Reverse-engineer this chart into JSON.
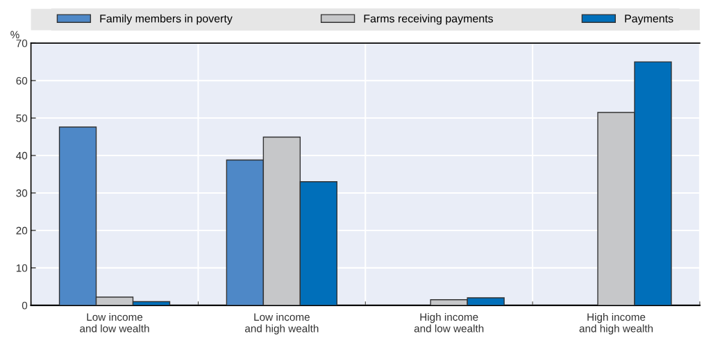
{
  "chart_data": {
    "type": "bar",
    "ylabel": "%",
    "categories": [
      "Low income\nand low wealth",
      "Low income\nand high wealth",
      "High income\nand low wealth",
      "High income\nand high wealth"
    ],
    "series": [
      {
        "name": "Family members in poverty",
        "color": "#4e88c7",
        "values": [
          47.6,
          38.8,
          null,
          null
        ]
      },
      {
        "name": "Farms receiving payments",
        "color": "#c6c7c9",
        "values": [
          2.2,
          44.9,
          1.5,
          51.5
        ]
      },
      {
        "name": "Payments",
        "color": "#006fba",
        "values": [
          1.0,
          33.0,
          2.0,
          65.0
        ]
      }
    ],
    "ylim": [
      0,
      70
    ],
    "yticks": [
      0,
      10,
      20,
      30,
      40,
      50,
      60,
      70
    ],
    "grid": true,
    "legend": "top"
  }
}
